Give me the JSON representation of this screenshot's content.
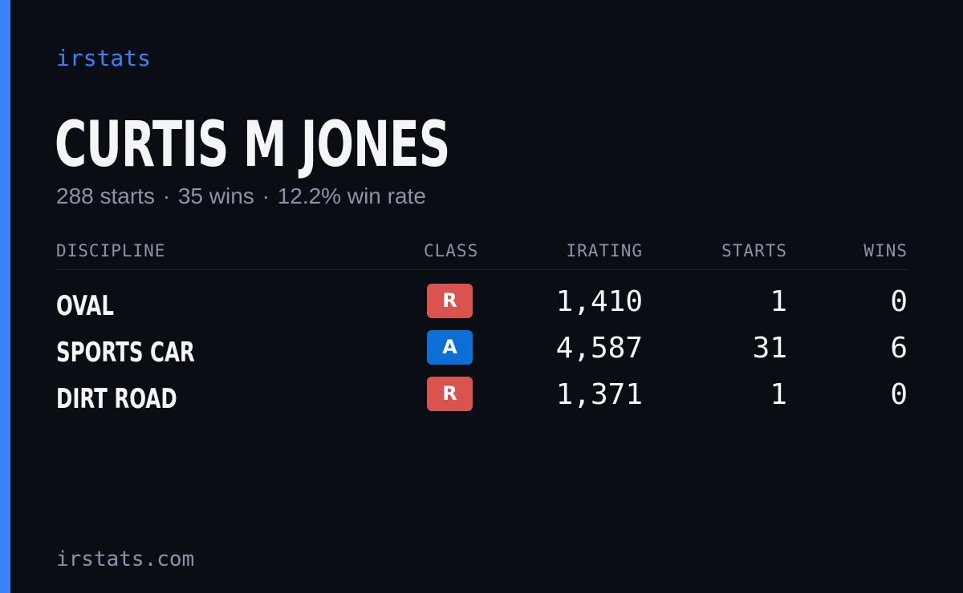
{
  "brand": "irstats",
  "player": {
    "name": "CURTIS M JONES",
    "starts_text": "288 starts",
    "wins_text": "35 wins",
    "win_rate_text": "12.2% win rate",
    "separator": "·"
  },
  "table": {
    "headers": {
      "discipline": "DISCIPLINE",
      "class": "CLASS",
      "irating": "IRATING",
      "starts": "STARTS",
      "wins": "WINS"
    },
    "rows": [
      {
        "discipline": "OVAL",
        "class": "R",
        "class_color": "#d9534f",
        "irating": "1,410",
        "starts": "1",
        "wins": "0"
      },
      {
        "discipline": "SPORTS CAR",
        "class": "A",
        "class_color": "#0d6fd6",
        "irating": "4,587",
        "starts": "31",
        "wins": "6"
      },
      {
        "discipline": "DIRT ROAD",
        "class": "R",
        "class_color": "#d9534f",
        "irating": "1,371",
        "starts": "1",
        "wins": "0"
      }
    ]
  },
  "footer": "irstats.com",
  "colors": {
    "background": "#0a0d14",
    "accent": "#3b82f6",
    "text_primary": "#f4f5f7",
    "text_muted": "#8b93a7"
  }
}
